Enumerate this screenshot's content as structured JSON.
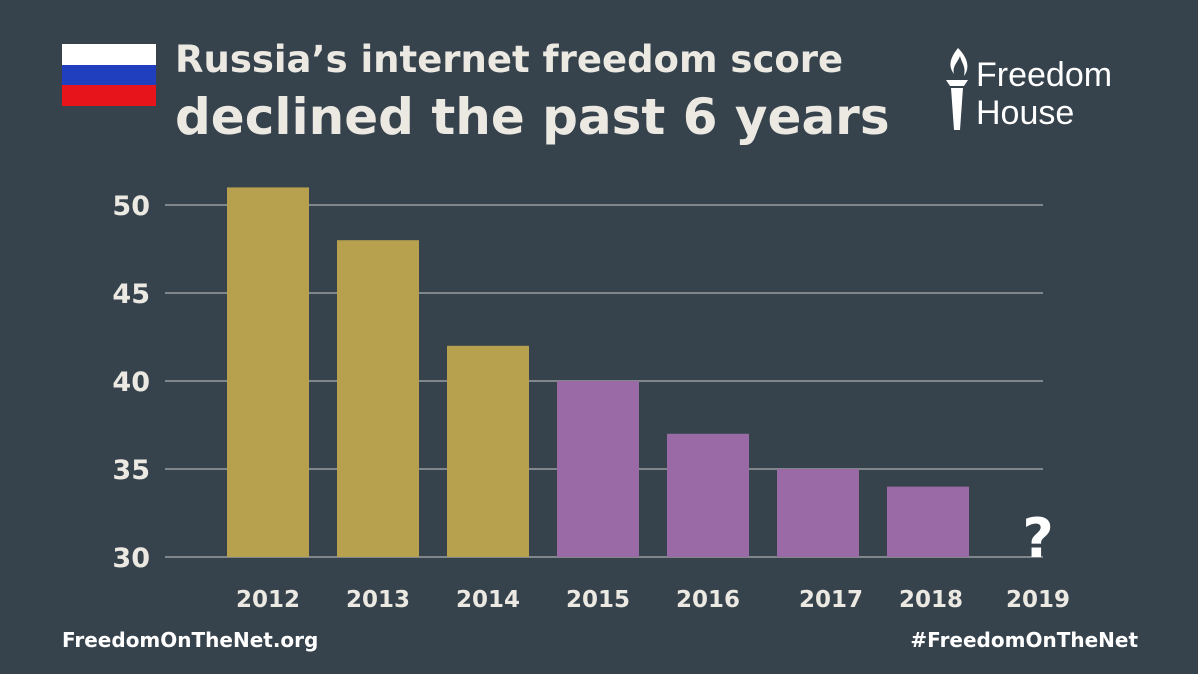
{
  "header": {
    "title_line1": "Russia’s internet freedom score",
    "title_line2": "declined the past 6 years",
    "flag_colors": [
      "#ffffff",
      "#1f3fbf",
      "#e8141c"
    ]
  },
  "logo": {
    "line1": "Freedom",
    "line2": "House",
    "icon": "torch-icon"
  },
  "footer": {
    "left": "FreedomOnTheNet.org",
    "right": "#FreedomOnTheNet"
  },
  "chart_data": {
    "type": "bar",
    "categories": [
      "2012",
      "2013",
      "2014",
      "2015",
      "2016",
      "2017",
      "2018",
      "2019"
    ],
    "values": [
      51,
      48,
      42,
      40,
      37,
      35,
      34,
      null
    ],
    "bar_colors": [
      "#b8a14e",
      "#b8a14e",
      "#b8a14e",
      "#9a6aa6",
      "#9a6aa6",
      "#9a6aa6",
      "#9a6aa6",
      null
    ],
    "missing_label": "?",
    "yticks": [
      "30",
      "35",
      "40",
      "45",
      "50"
    ],
    "ylim": [
      30,
      52
    ],
    "grid": true,
    "grid_color": "#c9c9c9"
  }
}
